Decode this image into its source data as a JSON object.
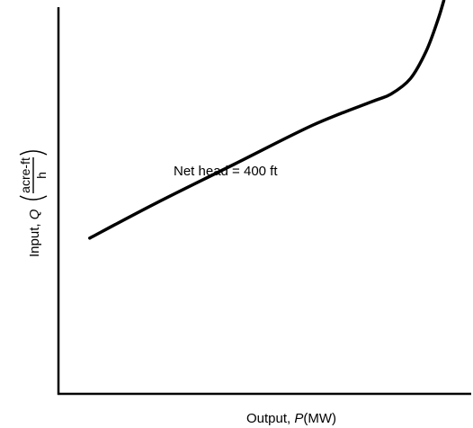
{
  "chart_data": {
    "type": "line",
    "annotation": "Net head = 400 ft",
    "xlabel": {
      "prefix": "Output, ",
      "symbol": "P",
      "unit": "(MW)"
    },
    "ylabel": {
      "prefix": "Input, ",
      "symbol": "Q",
      "unit_numerator": "acre-ft",
      "unit_denominator": "h"
    },
    "xlim": [
      0,
      100
    ],
    "ylim": [
      0,
      100
    ],
    "grid": false,
    "series": [
      {
        "curve": [
          {
            "x": 8,
            "y": 40
          },
          {
            "x": 25,
            "y": 49
          },
          {
            "x": 45,
            "y": 59
          },
          {
            "x": 65,
            "y": 69
          },
          {
            "x": 80,
            "y": 75
          },
          {
            "x": 85,
            "y": 77
          },
          {
            "x": 90,
            "y": 81
          },
          {
            "x": 94,
            "y": 88
          },
          {
            "x": 97,
            "y": 96
          },
          {
            "x": 98.5,
            "y": 101
          }
        ]
      }
    ]
  }
}
